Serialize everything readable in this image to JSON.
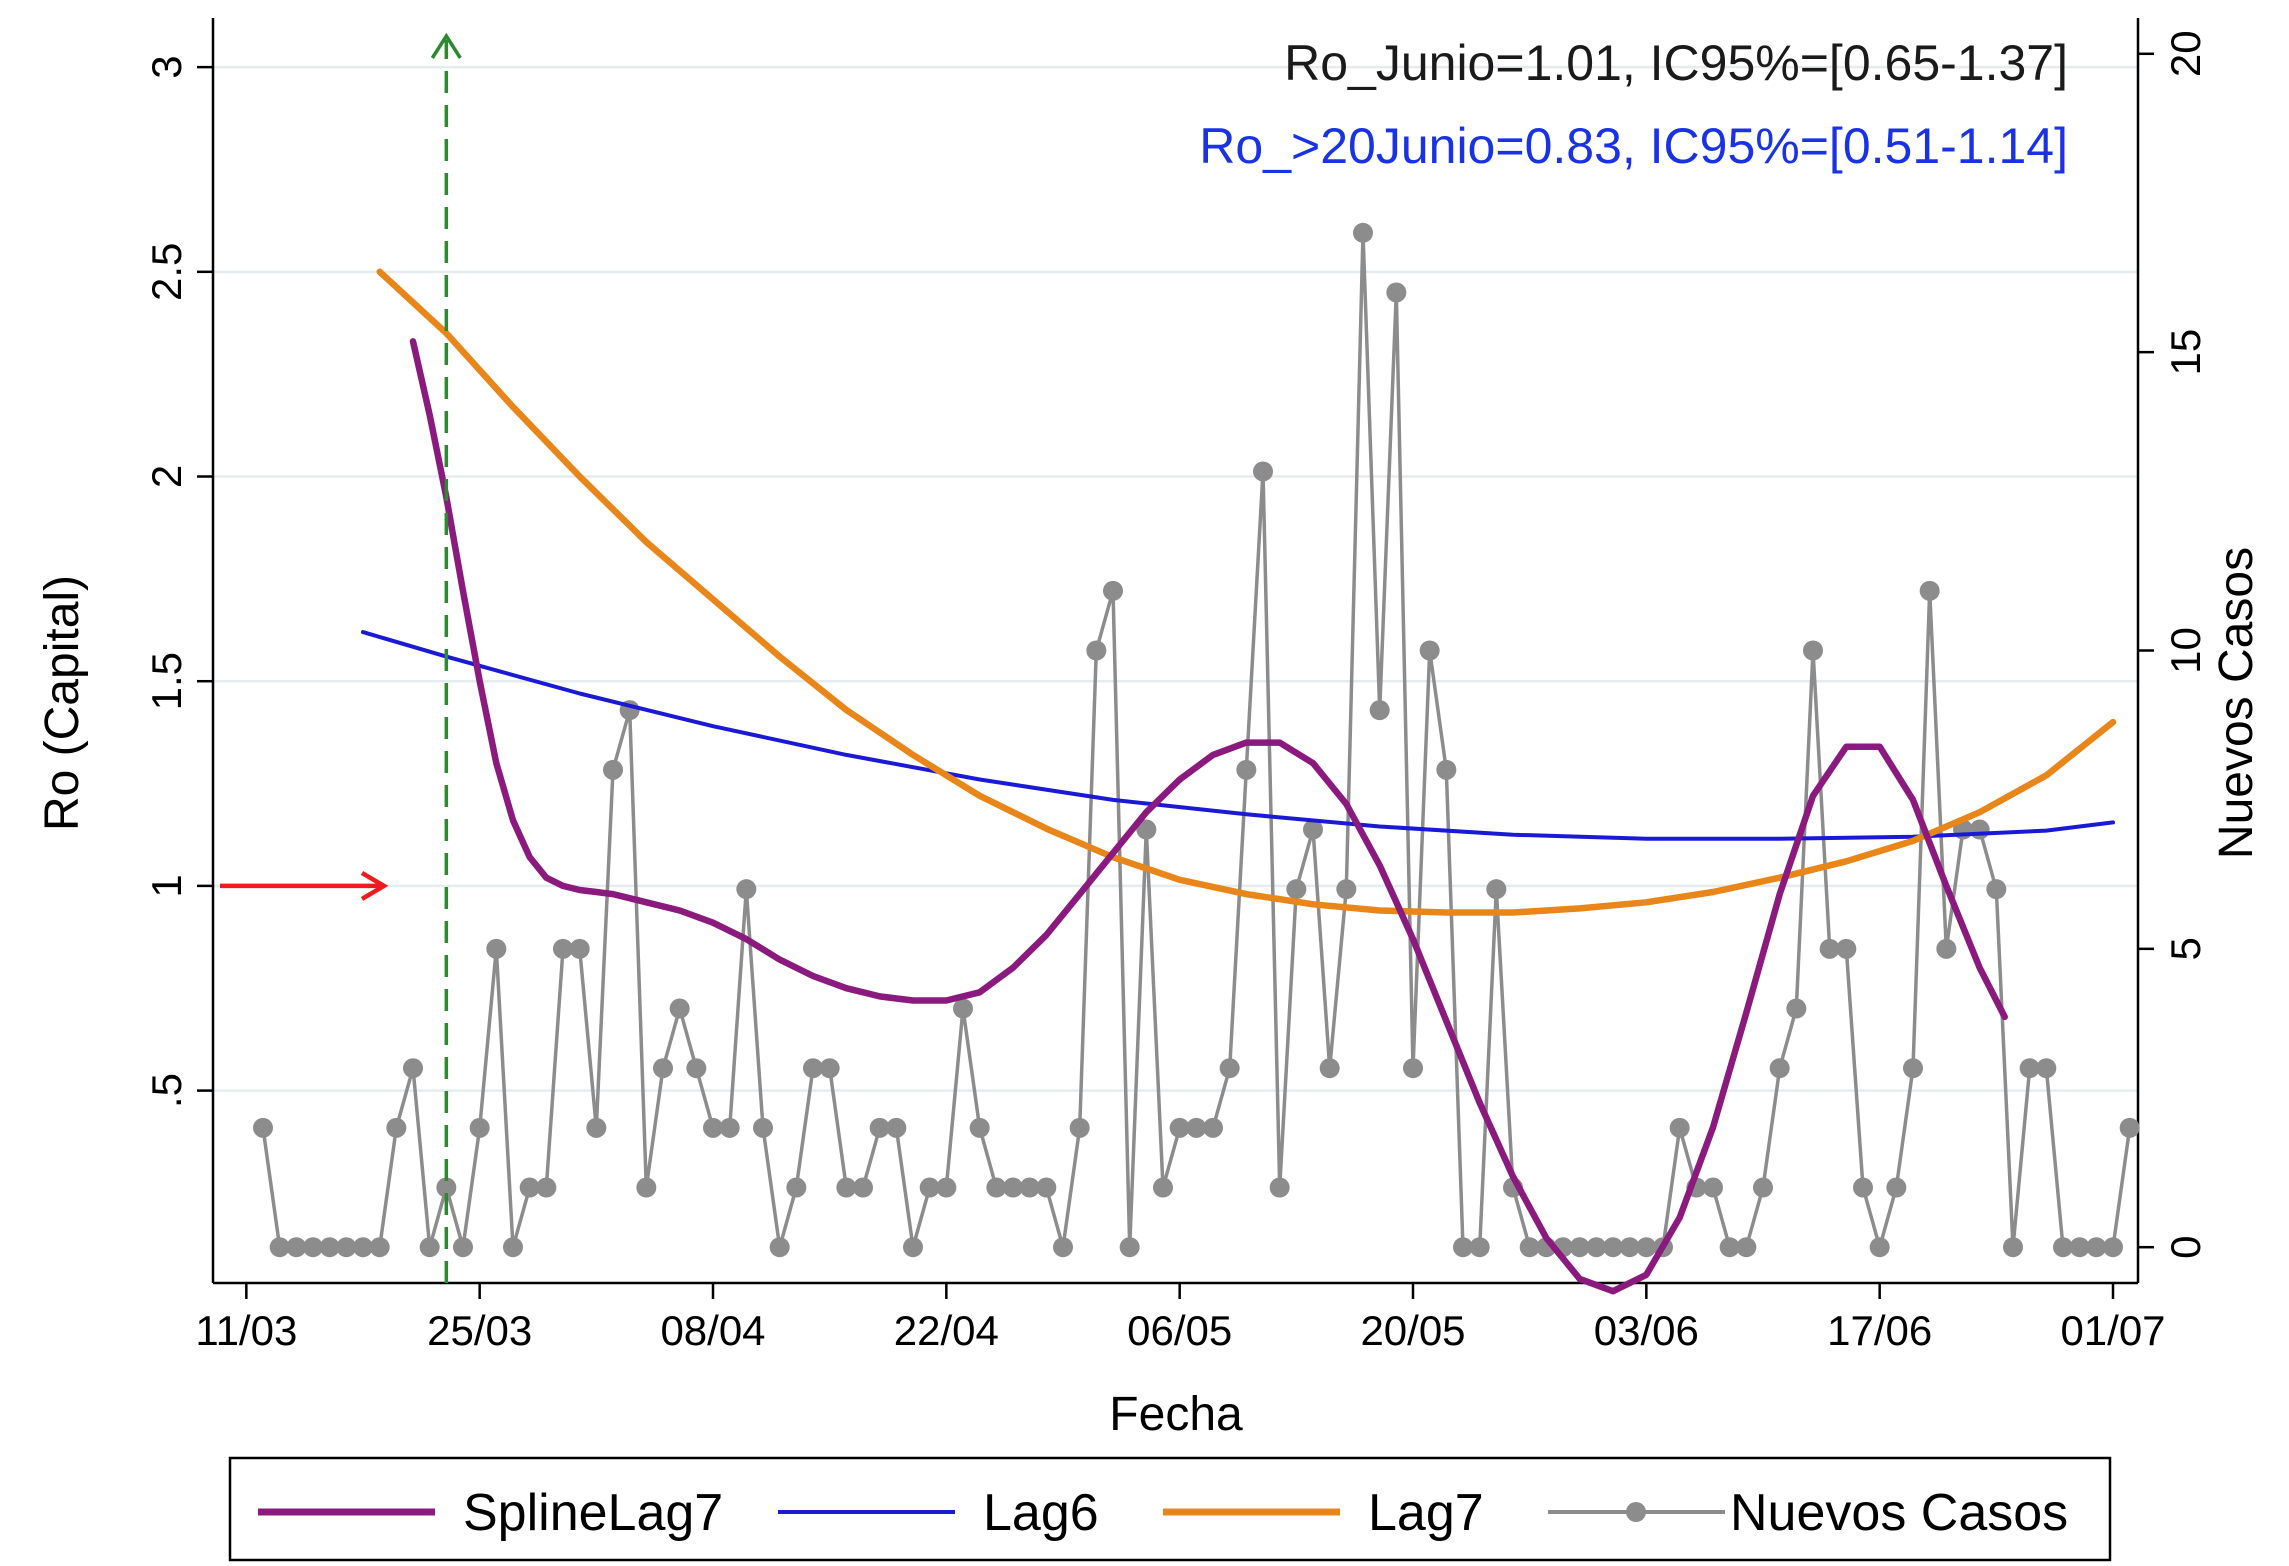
{
  "chart_data": {
    "type": "line",
    "xlabel": "Fecha",
    "ylabel": "Ro (Capital)",
    "y2label": "Nuevos Casos",
    "x_ticks": [
      "11/03",
      "25/03",
      "08/04",
      "22/04",
      "06/05",
      "20/05",
      "03/06",
      "17/06",
      "01/07"
    ],
    "x_tick_days": [
      0,
      14,
      28,
      42,
      56,
      70,
      84,
      98,
      112
    ],
    "y_ticks": [
      ".5",
      "1",
      "1.5",
      "2",
      "2.5",
      "3"
    ],
    "y_tick_values": [
      0.5,
      1,
      1.5,
      2,
      2.5,
      3
    ],
    "ylim": [
      0.03,
      3.12
    ],
    "y2_ticks": [
      "0",
      "5",
      "10",
      "15",
      "20"
    ],
    "y2_tick_values": [
      0,
      5,
      10,
      15,
      20
    ],
    "y2lim": [
      -0.6,
      20.6
    ],
    "xlim": [
      -2,
      113.5
    ],
    "grid": true,
    "legend_position": "bottom",
    "reference_arrow": {
      "label_value": 1,
      "color": "#ee1c1c"
    },
    "vertical_marker_day": 12,
    "annotations": [
      {
        "text": "Ro_Junio=1.01, IC95%=[0.65-1.37]",
        "color": "#1a1a1a"
      },
      {
        "text": "Ro_>20Junio=0.83, IC95%=[0.51-1.14]",
        "color": "#1a32e6"
      }
    ],
    "series": [
      {
        "name": "SplineLag7",
        "color": "#8b1a7f",
        "axis": "left",
        "x": [
          10,
          11,
          12,
          13,
          14,
          15,
          16,
          17,
          18,
          19,
          20,
          21,
          22,
          24,
          26,
          28,
          30,
          32,
          34,
          36,
          38,
          40,
          42,
          44,
          46,
          48,
          50,
          52,
          54,
          56,
          58,
          60,
          62,
          64,
          66,
          68,
          70,
          72,
          74,
          76,
          78,
          80,
          82,
          84,
          86,
          88,
          90,
          92,
          94,
          96,
          98,
          100,
          102,
          104,
          105.5
        ],
        "y": [
          2.33,
          2.15,
          1.95,
          1.72,
          1.5,
          1.3,
          1.16,
          1.07,
          1.02,
          1.0,
          0.99,
          0.985,
          0.98,
          0.96,
          0.94,
          0.91,
          0.87,
          0.82,
          0.78,
          0.75,
          0.73,
          0.72,
          0.72,
          0.74,
          0.8,
          0.88,
          0.98,
          1.08,
          1.18,
          1.26,
          1.32,
          1.35,
          1.35,
          1.3,
          1.2,
          1.05,
          0.87,
          0.67,
          0.47,
          0.29,
          0.14,
          0.04,
          0.01,
          0.05,
          0.19,
          0.41,
          0.69,
          0.98,
          1.22,
          1.34,
          1.34,
          1.21,
          1.0,
          0.8,
          0.68
        ]
      },
      {
        "name": "Lag6",
        "color": "#1a1ad6",
        "axis": "left",
        "x": [
          7,
          12,
          20,
          28,
          36,
          44,
          52,
          60,
          68,
          76,
          84,
          92,
          100,
          108,
          112
        ],
        "y": [
          1.62,
          1.56,
          1.47,
          1.39,
          1.32,
          1.26,
          1.21,
          1.175,
          1.145,
          1.125,
          1.115,
          1.115,
          1.12,
          1.135,
          1.155
        ]
      },
      {
        "name": "Lag7",
        "color": "#e8861a",
        "axis": "left",
        "x": [
          8,
          12,
          16,
          20,
          24,
          28,
          32,
          36,
          40,
          44,
          48,
          52,
          56,
          60,
          64,
          68,
          72,
          76,
          80,
          84,
          88,
          92,
          96,
          100,
          104,
          108,
          112
        ],
        "y": [
          2.5,
          2.35,
          2.17,
          2.0,
          1.84,
          1.7,
          1.56,
          1.43,
          1.32,
          1.22,
          1.14,
          1.07,
          1.015,
          0.98,
          0.955,
          0.94,
          0.935,
          0.935,
          0.945,
          0.96,
          0.985,
          1.02,
          1.06,
          1.11,
          1.18,
          1.27,
          1.4
        ]
      },
      {
        "name": "Nuevos Casos",
        "color": "#8c8c8c",
        "axis": "right",
        "x": [
          1,
          2,
          3,
          4,
          5,
          6,
          7,
          8,
          9,
          10,
          11,
          12,
          13,
          14,
          15,
          16,
          17,
          18,
          19,
          20,
          21,
          22,
          23,
          24,
          25,
          26,
          27,
          28,
          29,
          30,
          31,
          32,
          33,
          34,
          35,
          36,
          37,
          38,
          39,
          40,
          41,
          42,
          43,
          44,
          45,
          46,
          47,
          48,
          49,
          50,
          51,
          52,
          53,
          54,
          55,
          56,
          57,
          58,
          59,
          60,
          61,
          62,
          63,
          64,
          65,
          66,
          67,
          68,
          69,
          70,
          71,
          72,
          73,
          74,
          75,
          76,
          77,
          78,
          79,
          80,
          81,
          82,
          83,
          84,
          85,
          86,
          87,
          88,
          89,
          90,
          91,
          92,
          93,
          94,
          95,
          96,
          97,
          98,
          99,
          100,
          101,
          102,
          103,
          104,
          105,
          106,
          107,
          108,
          109,
          110,
          111,
          112,
          113
        ],
        "y": [
          2,
          0,
          0,
          0,
          0,
          0,
          0,
          0,
          2,
          3,
          0,
          1,
          0,
          2,
          5,
          0,
          1,
          1,
          5,
          5,
          2,
          8,
          9,
          1,
          3,
          4,
          3,
          2,
          2,
          6,
          2,
          0,
          1,
          3,
          3,
          1,
          1,
          2,
          2,
          0,
          1,
          1,
          4,
          2,
          1,
          1,
          1,
          1,
          0,
          2,
          10,
          11,
          0,
          7,
          1,
          2,
          2,
          2,
          3,
          8,
          13,
          1,
          6,
          7,
          3,
          6,
          17,
          9,
          16,
          3,
          10,
          8,
          0,
          0,
          6,
          1,
          0,
          0,
          0,
          0,
          0,
          0,
          0,
          0,
          0,
          2,
          1,
          1,
          0,
          0,
          1,
          3,
          4,
          10,
          5,
          5,
          1,
          0,
          1,
          3,
          11,
          5,
          7,
          7,
          6,
          0,
          3,
          3,
          0,
          0,
          0,
          0,
          2
        ]
      }
    ]
  }
}
